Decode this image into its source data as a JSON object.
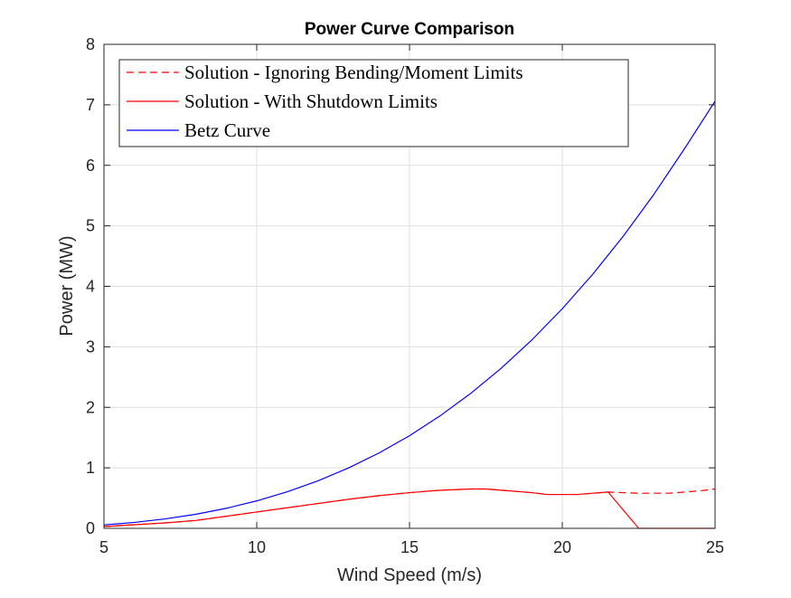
{
  "chart_data": {
    "type": "line",
    "title": "Power Curve Comparison",
    "xlabel": "Wind Speed (m/s)",
    "ylabel": "Power (MW)",
    "xlim": [
      5,
      25
    ],
    "ylim": [
      0,
      8
    ],
    "xticks": [
      5,
      10,
      15,
      20,
      25
    ],
    "yticks": [
      0,
      1,
      2,
      3,
      4,
      5,
      6,
      7,
      8
    ],
    "grid": true,
    "legend_position": "top-left",
    "series": [
      {
        "name": "Solution - Ignoring Bending/Moment Limits",
        "color": "#ff0000",
        "style": "dashed",
        "x": [
          5,
          6,
          7,
          8,
          9,
          10,
          11,
          12,
          13,
          14,
          15,
          16,
          17,
          17.5,
          18,
          19,
          19.5,
          20,
          20.5,
          21,
          21.5,
          22,
          22.5,
          23,
          23.5,
          24,
          24.5,
          25
        ],
        "y": [
          0.03,
          0.06,
          0.09,
          0.13,
          0.2,
          0.27,
          0.34,
          0.41,
          0.48,
          0.54,
          0.59,
          0.63,
          0.65,
          0.65,
          0.63,
          0.59,
          0.56,
          0.56,
          0.56,
          0.58,
          0.6,
          0.59,
          0.58,
          0.58,
          0.58,
          0.6,
          0.62,
          0.65
        ]
      },
      {
        "name": "Solution - With Shutdown Limits",
        "color": "#ff0000",
        "style": "solid",
        "x": [
          5,
          6,
          7,
          8,
          9,
          10,
          11,
          12,
          13,
          14,
          15,
          16,
          17,
          17.5,
          18,
          19,
          19.5,
          20,
          20.5,
          21,
          21.5,
          22.5,
          23,
          24,
          25
        ],
        "y": [
          0.03,
          0.06,
          0.09,
          0.13,
          0.2,
          0.27,
          0.34,
          0.41,
          0.48,
          0.54,
          0.59,
          0.63,
          0.65,
          0.65,
          0.63,
          0.59,
          0.56,
          0.56,
          0.56,
          0.58,
          0.6,
          0.0,
          0.0,
          0.0,
          0.0
        ]
      },
      {
        "name": "Betz Curve",
        "color": "#0000ff",
        "style": "solid",
        "x": [
          5,
          6,
          7,
          8,
          9,
          10,
          11,
          12,
          13,
          14,
          15,
          16,
          17,
          18,
          19,
          20,
          21,
          22,
          23,
          24,
          25
        ],
        "y": [
          0.057,
          0.098,
          0.156,
          0.232,
          0.331,
          0.454,
          0.604,
          0.784,
          0.997,
          1.245,
          1.531,
          1.859,
          2.229,
          2.646,
          3.112,
          3.63,
          4.202,
          4.832,
          5.522,
          6.275,
          7.06
        ]
      }
    ]
  }
}
